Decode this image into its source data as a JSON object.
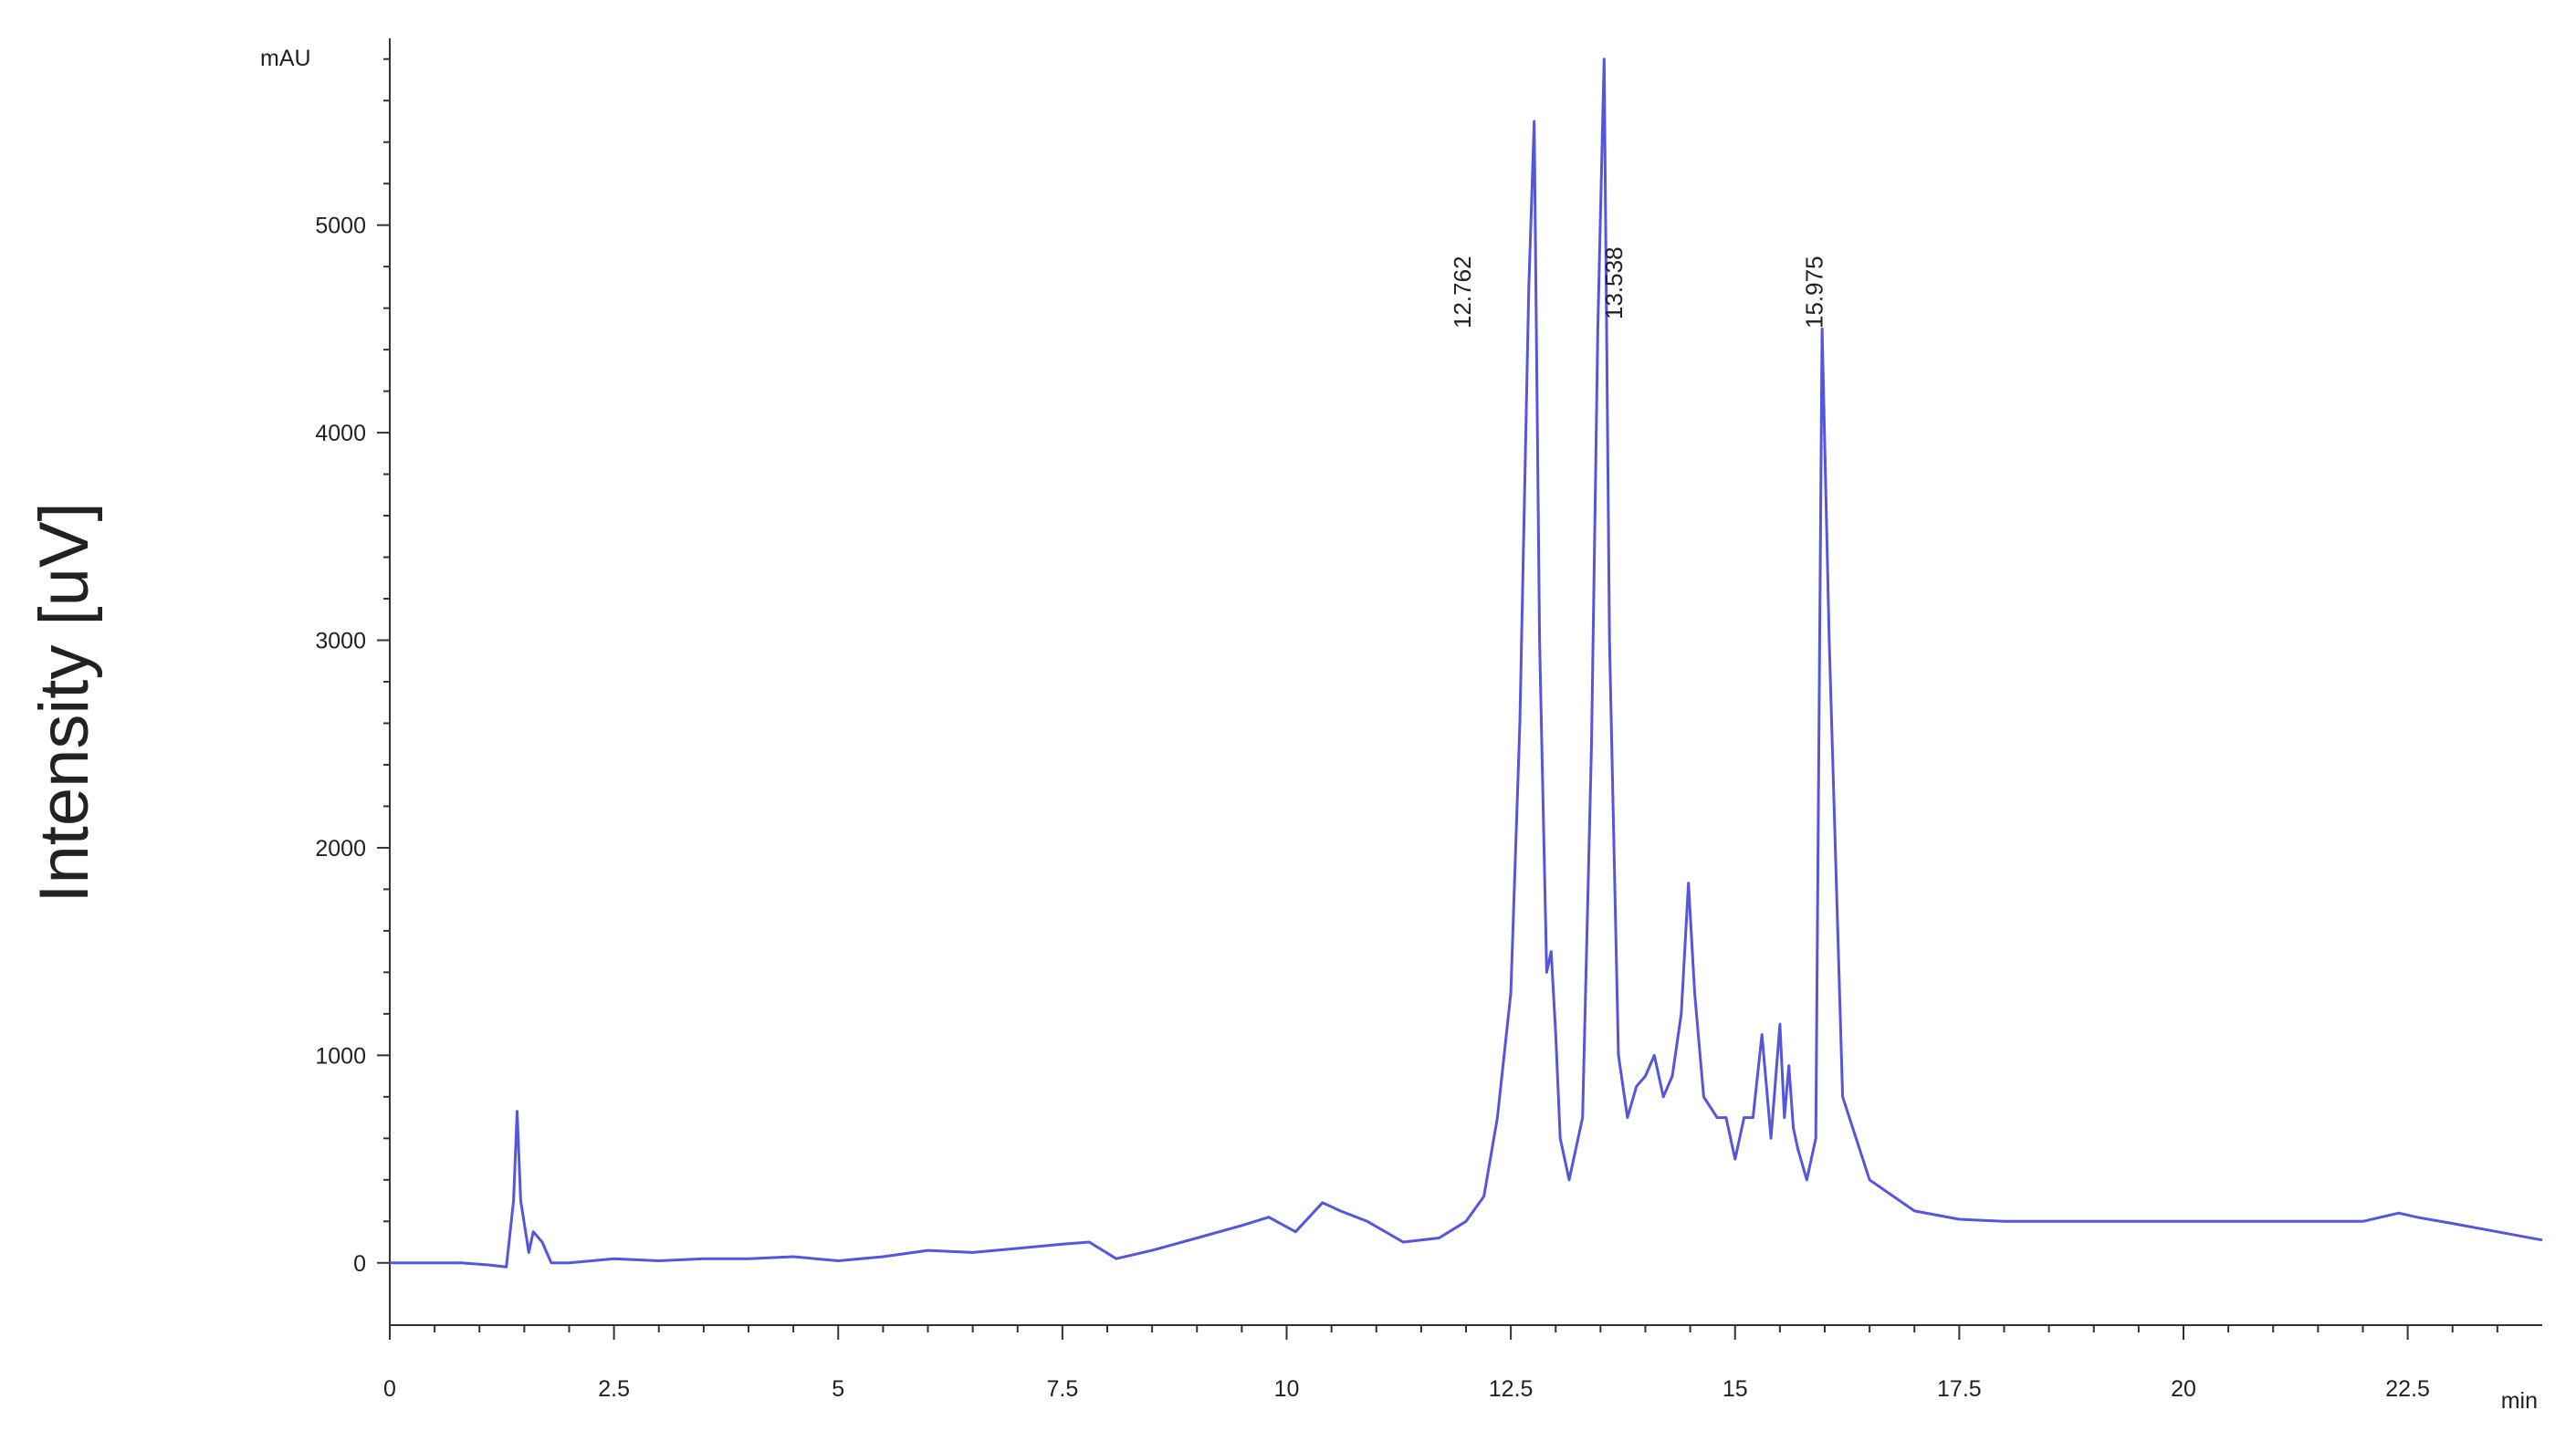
{
  "chart_data": {
    "type": "line",
    "ylabel": "Intensity [uV]",
    "y_unit": "mAU",
    "x_unit": "min",
    "xlim": [
      0,
      24
    ],
    "ylim": [
      -300,
      5900
    ],
    "xticks": [
      0,
      2.5,
      5,
      7.5,
      10,
      12.5,
      15,
      17.5,
      20,
      22.5
    ],
    "xtick_labels": [
      "0",
      "2.5",
      "5",
      "7.5",
      "10",
      "12.5",
      "15",
      "17.5",
      "20",
      "22.5"
    ],
    "yticks": [
      0,
      1000,
      2000,
      3000,
      4000,
      5000
    ],
    "ytick_labels": [
      "0",
      "1000",
      "2000",
      "3000",
      "4000",
      "5000"
    ],
    "grid": false,
    "line_color": "#5555dd",
    "peak_labels": [
      {
        "x": 12.762,
        "text": "12.762"
      },
      {
        "x": 13.538,
        "text": "13.538"
      },
      {
        "x": 15.975,
        "text": "15.975"
      }
    ],
    "series": [
      {
        "x": [
          0,
          0.8,
          1.1,
          1.3,
          1.38,
          1.42,
          1.46,
          1.55,
          1.6,
          1.7,
          1.8,
          2.0,
          2.5,
          3.0,
          3.5,
          4.0,
          4.5,
          5.0,
          5.5,
          6.0,
          6.5,
          7.0,
          7.5,
          7.8,
          8.1,
          8.5,
          9.0,
          9.5,
          9.8,
          10.1,
          10.4,
          10.6,
          10.9,
          11.3,
          11.7,
          12.0,
          12.2,
          12.35,
          12.5,
          12.6,
          12.7,
          12.76,
          12.82,
          12.9,
          12.95,
          13.0,
          13.05,
          13.15,
          13.3,
          13.4,
          13.47,
          13.54,
          13.6,
          13.7,
          13.8,
          13.9,
          14.0,
          14.1,
          14.2,
          14.3,
          14.4,
          14.48,
          14.55,
          14.65,
          14.8,
          14.9,
          15.0,
          15.1,
          15.2,
          15.3,
          15.4,
          15.5,
          15.55,
          15.6,
          15.65,
          15.7,
          15.8,
          15.9,
          15.97,
          16.05,
          16.2,
          16.5,
          17.0,
          17.5,
          18.0,
          19.0,
          20.0,
          21.0,
          22.0,
          22.4,
          22.6,
          23.0,
          23.5,
          24.0
        ],
        "y": [
          0,
          0,
          -10,
          -20,
          300,
          730,
          300,
          50,
          150,
          100,
          0,
          0,
          20,
          10,
          20,
          20,
          30,
          10,
          30,
          60,
          50,
          70,
          90,
          100,
          20,
          60,
          120,
          180,
          220,
          150,
          290,
          250,
          200,
          100,
          120,
          200,
          320,
          700,
          1300,
          2600,
          4700,
          5500,
          3000,
          1400,
          1500,
          1100,
          600,
          400,
          700,
          2500,
          4500,
          5800,
          3000,
          1000,
          700,
          850,
          900,
          1000,
          800,
          900,
          1200,
          1830,
          1300,
          800,
          700,
          700,
          500,
          700,
          700,
          1100,
          600,
          1150,
          700,
          950,
          650,
          550,
          400,
          600,
          4500,
          3000,
          800,
          400,
          250,
          210,
          200,
          200,
          200,
          200,
          200,
          240,
          220,
          190,
          150,
          110
        ]
      }
    ]
  }
}
